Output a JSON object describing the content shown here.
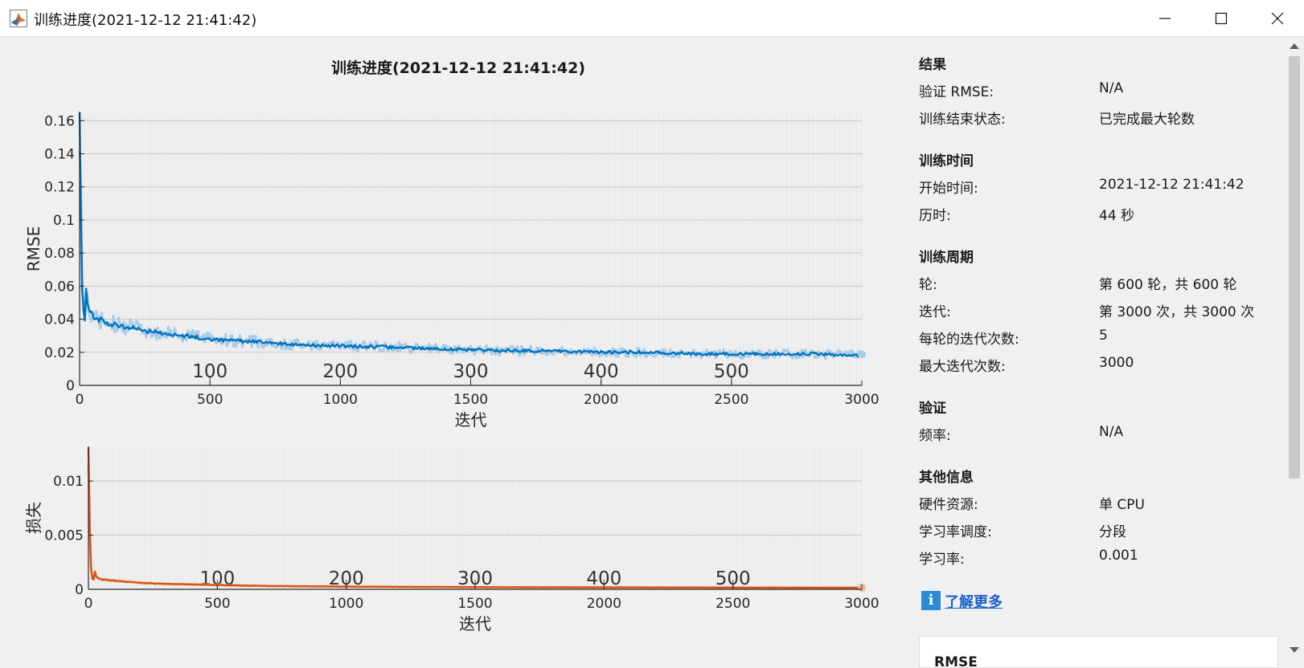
{
  "window": {
    "title": "训练进度(2021-12-12 21:41:42)",
    "icon": "matlab-logo-icon"
  },
  "plot_title": "训练进度(2021-12-12 21:41:42)",
  "colors": {
    "rmse_line": "#0072BD",
    "rmse_band": "#a9cde8",
    "loss_line": "#D95319",
    "loss_band": "#f1b89c",
    "link": "#1a5ec8"
  },
  "chart_data": [
    {
      "type": "line",
      "ylabel": "RMSE",
      "xlabel": "迭代",
      "xlim": [
        0,
        3000
      ],
      "ylim": [
        0,
        0.165
      ],
      "x_ticks": [
        "0",
        "500",
        "1000",
        "1500",
        "2000",
        "2500",
        "3000"
      ],
      "y_ticks": [
        "0",
        "0.02",
        "0.04",
        "0.06",
        "0.08",
        "0.1",
        "0.12",
        "0.14",
        "0.16"
      ],
      "epoch_marks": [
        "100",
        "200",
        "300",
        "400",
        "500"
      ],
      "grid": true,
      "series": [
        {
          "x": [
            0,
            5,
            10,
            15,
            20,
            25,
            30,
            40,
            50,
            75,
            100,
            150,
            200,
            250,
            300,
            400,
            500,
            600,
            700,
            800,
            900,
            1000,
            1200,
            1400,
            1600,
            1800,
            2000,
            2200,
            2400,
            2600,
            2800,
            3000
          ],
          "y": [
            0.165,
            0.11,
            0.06,
            0.045,
            0.04,
            0.057,
            0.05,
            0.045,
            0.042,
            0.04,
            0.038,
            0.036,
            0.035,
            0.033,
            0.032,
            0.03,
            0.028,
            0.027,
            0.026,
            0.025,
            0.024,
            0.024,
            0.023,
            0.022,
            0.021,
            0.021,
            0.02,
            0.02,
            0.019,
            0.019,
            0.019,
            0.018
          ]
        }
      ]
    },
    {
      "type": "line",
      "ylabel": "损失",
      "xlabel": "迭代",
      "xlim": [
        0,
        3000
      ],
      "ylim": [
        0,
        0.0132
      ],
      "x_ticks": [
        "0",
        "500",
        "1000",
        "1500",
        "2000",
        "2500",
        "3000"
      ],
      "y_ticks": [
        "0",
        "0.005",
        "0.01"
      ],
      "epoch_marks": [
        "100",
        "200",
        "300",
        "400",
        "500"
      ],
      "grid": true,
      "series": [
        {
          "x": [
            0,
            5,
            10,
            15,
            20,
            25,
            30,
            40,
            50,
            100,
            200,
            300,
            500,
            700,
            1000,
            1500,
            2000,
            2500,
            3000
          ],
          "y": [
            0.0128,
            0.006,
            0.002,
            0.001,
            0.0009,
            0.0016,
            0.0012,
            0.001,
            0.0009,
            0.0008,
            0.0006,
            0.0005,
            0.0004,
            0.0003,
            0.00025,
            0.0002,
            0.00018,
            0.00016,
            0.00015
          ]
        }
      ]
    }
  ],
  "panel": {
    "results": {
      "title": "结果",
      "rows": [
        {
          "label": "验证 RMSE:",
          "value": "N/A"
        },
        {
          "label": "训练结束状态:",
          "value": "已完成最大轮数"
        }
      ]
    },
    "time": {
      "title": "训练时间",
      "rows": [
        {
          "label": "开始时间:",
          "value": "2021-12-12 21:41:42"
        },
        {
          "label": "历时:",
          "value": "44 秒"
        }
      ]
    },
    "cycle": {
      "title": "训练周期",
      "rows": [
        {
          "label": "轮:",
          "value": "第 600 轮，共 600 轮"
        },
        {
          "label": "迭代:",
          "value": "第 3000 次，共 3000 次"
        },
        {
          "label": "每轮的迭代次数:",
          "value": "5"
        },
        {
          "label": "最大迭代次数:",
          "value": "3000"
        }
      ]
    },
    "validation": {
      "title": "验证",
      "rows": [
        {
          "label": "频率:",
          "value": "N/A"
        }
      ]
    },
    "other": {
      "title": "其他信息",
      "rows": [
        {
          "label": "硬件资源:",
          "value": "单 CPU"
        },
        {
          "label": "学习率调度:",
          "value": "分段"
        },
        {
          "label": "学习率:",
          "value": "0.001"
        }
      ]
    },
    "learn_more": "了解更多",
    "rmse_card_title": "RMSE"
  }
}
